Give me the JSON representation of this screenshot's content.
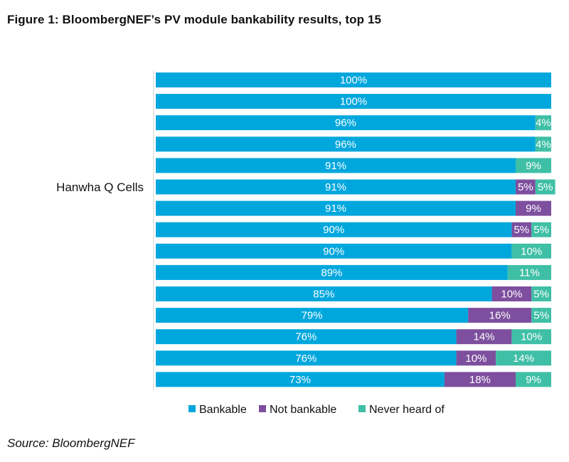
{
  "title": "Figure 1:  BloombergNEF’s PV module bankability results, top 15",
  "source": "Source: BloombergNEF",
  "chart_data": {
    "type": "bar",
    "orientation": "horizontal",
    "stacked": true,
    "xlim": [
      0,
      100
    ],
    "grid": false,
    "legend_position": "bottom",
    "categories": [
      "",
      "",
      "",
      "",
      "",
      "Hanwha Q Cells",
      "",
      "",
      "",
      "",
      "",
      "",
      "",
      "",
      ""
    ],
    "series": [
      {
        "name": "Bankable",
        "color": "#00a7dd",
        "values": [
          100,
          100,
          96,
          96,
          91,
          91,
          91,
          90,
          90,
          89,
          85,
          79,
          76,
          76,
          73
        ],
        "labels": [
          "100%",
          "100%",
          "96%",
          "96%",
          "91%",
          "91%",
          "91%",
          "90%",
          "90%",
          "89%",
          "85%",
          "79%",
          "76%",
          "76%",
          "73%"
        ]
      },
      {
        "name": "Not bankable",
        "color": "#7d4f9e",
        "values": [
          0,
          0,
          0,
          0,
          0,
          5,
          9,
          5,
          0,
          0,
          10,
          16,
          14,
          10,
          18
        ],
        "labels": [
          "",
          "",
          "",
          "",
          "",
          "5%",
          "9%",
          "5%",
          "",
          "",
          "10%",
          "16%",
          "14%",
          "10%",
          "18%"
        ]
      },
      {
        "name": "Never heard of",
        "color": "#3fbfa6",
        "values": [
          0,
          0,
          4,
          4,
          9,
          5,
          0,
          5,
          10,
          11,
          5,
          5,
          10,
          14,
          9
        ],
        "labels": [
          "",
          "",
          "4%",
          "4%",
          "9%",
          "5%",
          "",
          "5%",
          "10%",
          "11%",
          "5%",
          "5%",
          "10%",
          "14%",
          "9%"
        ]
      }
    ]
  }
}
